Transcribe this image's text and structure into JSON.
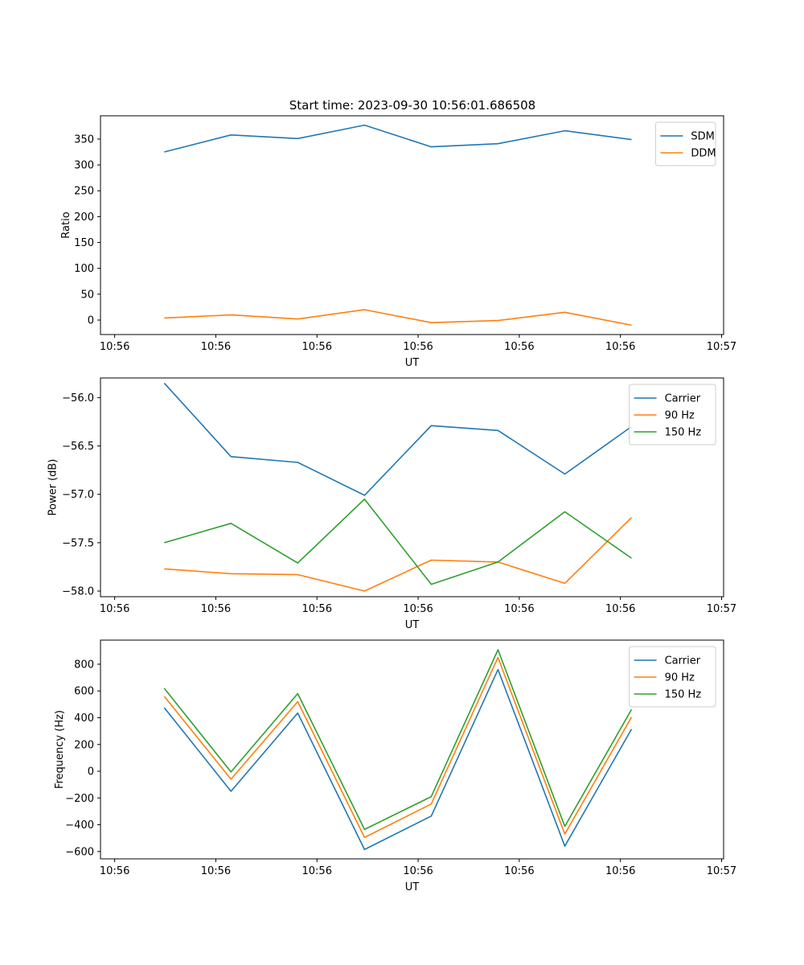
{
  "figure_title": "Start time: 2023-09-30 10:56:01.686508",
  "colors": {
    "blue": "#1f77b4",
    "orange": "#ff7f0e",
    "green": "#2ca02c"
  },
  "chart_data": [
    {
      "type": "line",
      "xlabel": "UT",
      "ylabel": "Ratio",
      "x_tick_labels": [
        "10:56",
        "10:56",
        "10:56",
        "10:56",
        "10:56",
        "10:56",
        "10:57"
      ],
      "x_ticks": [
        0,
        1,
        2,
        3,
        4,
        5,
        6
      ],
      "xlim": [
        -0.14,
        6.02
      ],
      "x": [
        0.49,
        1.15,
        1.81,
        2.47,
        3.13,
        3.79,
        4.45,
        5.11
      ],
      "yticks": [
        0,
        50,
        100,
        150,
        200,
        250,
        300,
        350
      ],
      "ylim": [
        -28,
        395
      ],
      "legend": "top-right",
      "series": [
        {
          "name": "SDM",
          "color": "#1f77b4",
          "values": [
            325,
            358,
            351,
            377,
            335,
            341,
            366,
            349
          ]
        },
        {
          "name": "DDM",
          "color": "#ff7f0e",
          "values": [
            4,
            10,
            2,
            20,
            -5,
            -1,
            15,
            -10
          ]
        }
      ]
    },
    {
      "type": "line",
      "xlabel": "UT",
      "ylabel": "Power (dB)",
      "x_tick_labels": [
        "10:56",
        "10:56",
        "10:56",
        "10:56",
        "10:56",
        "10:56",
        "10:57"
      ],
      "x_ticks": [
        0,
        1,
        2,
        3,
        4,
        5,
        6
      ],
      "xlim": [
        -0.14,
        6.02
      ],
      "x": [
        0.49,
        1.15,
        1.81,
        2.47,
        3.13,
        3.79,
        4.45,
        5.11
      ],
      "yticks": [
        -58.0,
        -57.5,
        -57.0,
        -56.5,
        -56.0
      ],
      "ytick_labels": [
        "−58.0",
        "−57.5",
        "−57.0",
        "−56.5",
        "−56.0"
      ],
      "ylim": [
        -58.058,
        -55.797
      ],
      "legend": "top-right",
      "series": [
        {
          "name": "Carrier",
          "color": "#1f77b4",
          "values": [
            -55.85,
            -56.61,
            -56.67,
            -57.01,
            -56.29,
            -56.34,
            -56.79,
            -56.3
          ]
        },
        {
          "name": "90 Hz",
          "color": "#ff7f0e",
          "values": [
            -57.77,
            -57.82,
            -57.83,
            -58.0,
            -57.68,
            -57.7,
            -57.92,
            -57.24
          ]
        },
        {
          "name": "150 Hz",
          "color": "#2ca02c",
          "values": [
            -57.5,
            -57.3,
            -57.71,
            -57.05,
            -57.93,
            -57.7,
            -57.18,
            -57.66
          ]
        }
      ]
    },
    {
      "type": "line",
      "xlabel": "UT",
      "ylabel": "Frequency (Hz)",
      "x_tick_labels": [
        "10:56",
        "10:56",
        "10:56",
        "10:56",
        "10:56",
        "10:56",
        "10:57"
      ],
      "x_ticks": [
        0,
        1,
        2,
        3,
        4,
        5,
        6
      ],
      "xlim": [
        -0.14,
        6.02
      ],
      "x": [
        0.49,
        1.15,
        1.81,
        2.47,
        3.13,
        3.79,
        4.45,
        5.11
      ],
      "yticks": [
        -600,
        -400,
        -200,
        0,
        200,
        400,
        600,
        800
      ],
      "ytick_labels": [
        "−600",
        "−400",
        "−200",
        "0",
        "200",
        "400",
        "600",
        "800"
      ],
      "ylim": [
        -655,
        980
      ],
      "legend": "top-right",
      "series": [
        {
          "name": "Carrier",
          "color": "#1f77b4",
          "values": [
            475,
            -150,
            435,
            -585,
            -335,
            760,
            -560,
            315
          ]
        },
        {
          "name": "90 Hz",
          "color": "#ff7f0e",
          "values": [
            560,
            -60,
            520,
            -495,
            -245,
            850,
            -470,
            405
          ]
        },
        {
          "name": "150 Hz",
          "color": "#2ca02c",
          "values": [
            620,
            -5,
            580,
            -435,
            -190,
            908,
            -412,
            462
          ]
        }
      ]
    }
  ]
}
